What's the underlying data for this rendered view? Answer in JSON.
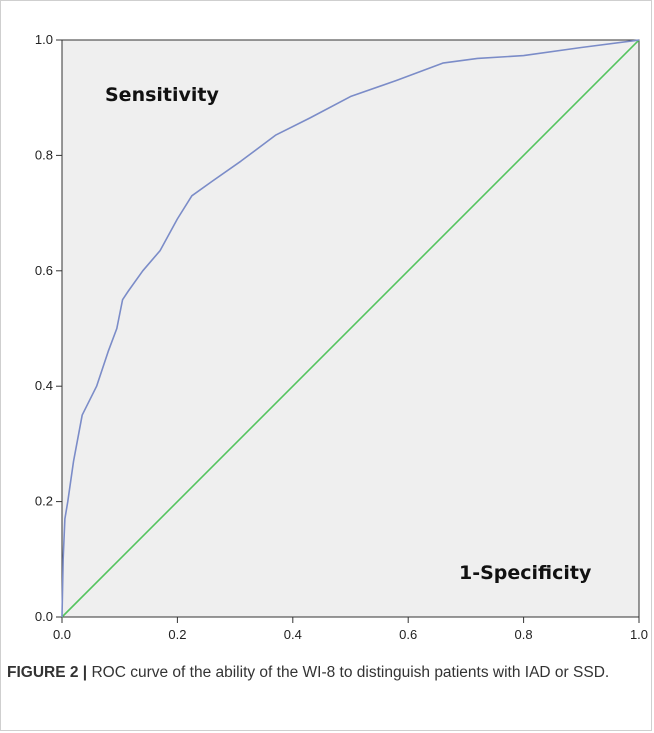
{
  "chart_data": {
    "type": "line",
    "title": "",
    "xlabel": "",
    "ylabel": "",
    "xlim": [
      0.0,
      1.0
    ],
    "ylim": [
      0.0,
      1.0
    ],
    "grid": false,
    "background": "#efefef",
    "x_ticks": [
      "0.0",
      "0.2",
      "0.4",
      "0.6",
      "0.8",
      "1.0"
    ],
    "y_ticks": [
      "0.0",
      "0.2",
      "0.4",
      "0.6",
      "0.8",
      "1.0"
    ],
    "annotations": [
      "Sensitivity",
      "1-Specificity"
    ],
    "series": [
      {
        "color": "#7b8cc8",
        "x": [
          0.0,
          0.002,
          0.005,
          0.01,
          0.02,
          0.035,
          0.06,
          0.08,
          0.095,
          0.105,
          0.115,
          0.14,
          0.17,
          0.2,
          0.225,
          0.26,
          0.31,
          0.37,
          0.43,
          0.5,
          0.58,
          0.66,
          0.72,
          0.8,
          0.9,
          1.0
        ],
        "y": [
          0.0,
          0.1,
          0.17,
          0.2,
          0.27,
          0.35,
          0.4,
          0.46,
          0.5,
          0.55,
          0.565,
          0.6,
          0.635,
          0.69,
          0.73,
          0.755,
          0.79,
          0.835,
          0.865,
          0.902,
          0.93,
          0.96,
          0.968,
          0.973,
          0.987,
          1.0
        ]
      },
      {
        "color": "#54c45e",
        "x": [
          0.0,
          1.0
        ],
        "y": [
          0.0,
          1.0
        ]
      }
    ]
  },
  "caption": {
    "label": "FIGURE 2 |",
    "text": " ROC curve of the ability of the WI-8 to distinguish patients with IAD or SSD."
  }
}
